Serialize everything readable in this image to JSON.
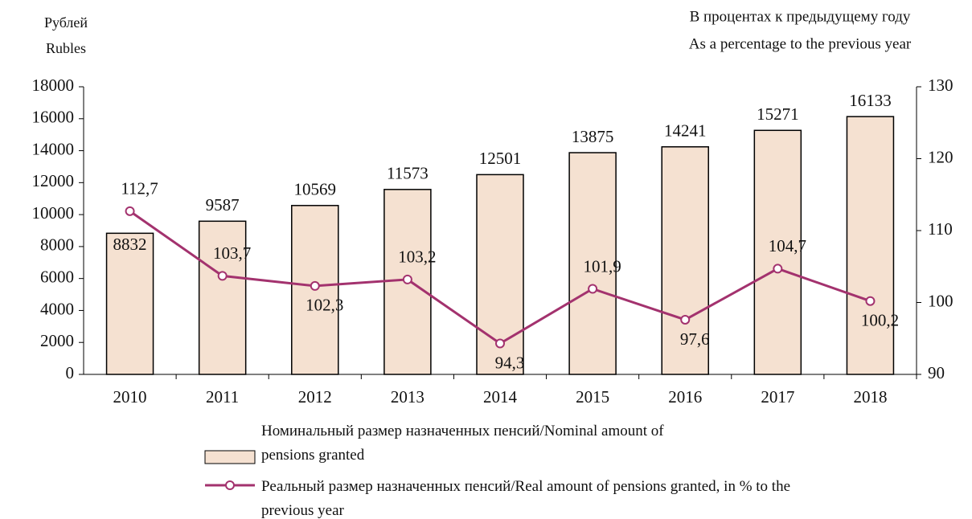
{
  "chart_data": {
    "type": "bar_line",
    "y_label": [
      "Рублей",
      "Rubles"
    ],
    "y2_label": [
      "В процентах к предыдущему году",
      "As a percentage to the previous year"
    ],
    "categories": [
      "2010",
      "2011",
      "2012",
      "2013",
      "2014",
      "2015",
      "2016",
      "2017",
      "2018"
    ],
    "series": [
      {
        "name": "Номинальный размер назначенных пенсий/Nominal amount of pensions granted",
        "type": "bar",
        "color": "#f5e1d1",
        "values": [
          8832,
          9587,
          10569,
          11573,
          12501,
          13875,
          14241,
          15271,
          16133
        ]
      },
      {
        "name": "Реальный размер назначенных пенсий/Real amount of pensions granted, in % to the previous year",
        "type": "line",
        "axis": "y2",
        "color": "#a3326e",
        "values": [
          112.7,
          103.7,
          102.3,
          103.2,
          94.3,
          101.9,
          97.6,
          104.7,
          100.2
        ],
        "value_labels": [
          "112,7",
          "103,7",
          "102,3",
          "103,2",
          "94,3",
          "101,9",
          "97,6",
          "104,7",
          "100,2"
        ]
      }
    ],
    "ylim": [
      0,
      18000
    ],
    "yticks": [
      0,
      2000,
      4000,
      6000,
      8000,
      10000,
      12000,
      14000,
      16000,
      18000
    ],
    "y2lim": [
      90,
      130
    ],
    "y2ticks": [
      90,
      100,
      110,
      120,
      130
    ]
  }
}
